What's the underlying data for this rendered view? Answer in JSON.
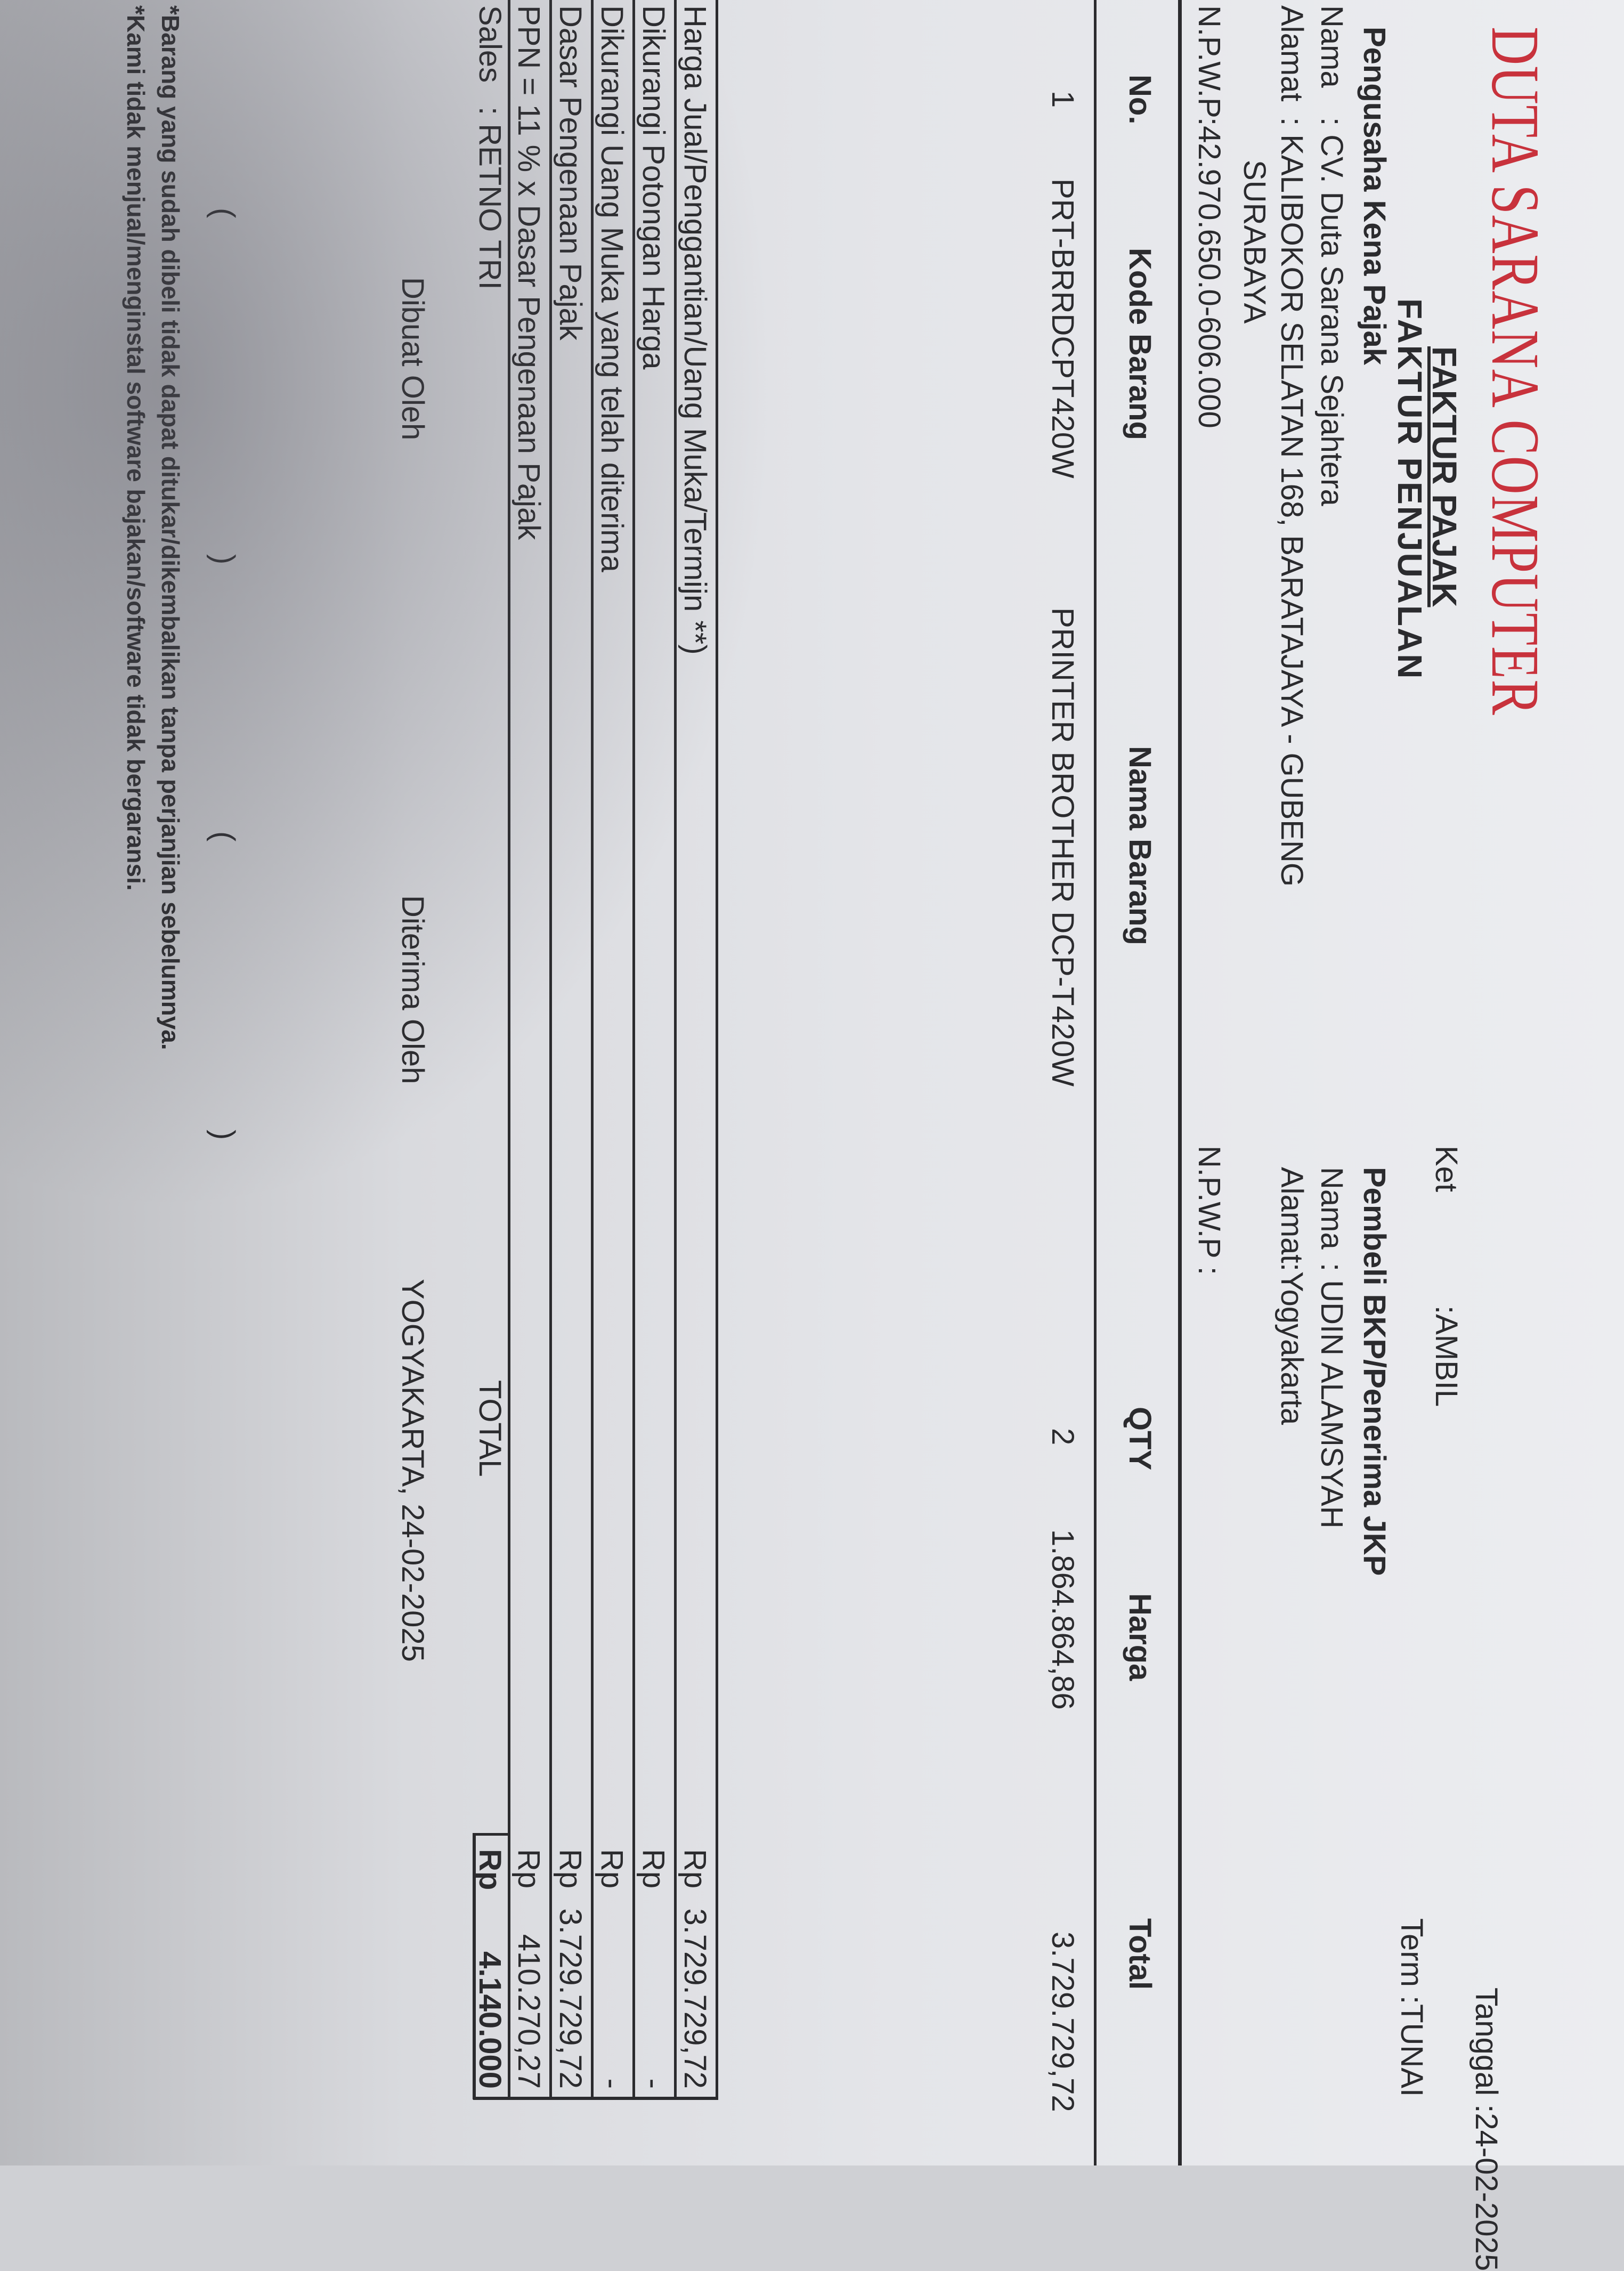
{
  "header": {
    "company": "DUTA SARANA COMPUTER",
    "doc_title": "FAKTUR PAJAK",
    "doc_subtitle": "FAKTUR PENJUALAN",
    "tanggal": "Tanggal :24-02-2025",
    "term": "Term   :TUNAI",
    "ket": "Ket",
    "ket_value": ":AMBIL",
    "accent_color": "#c8323c"
  },
  "seller": {
    "heading": "Pengusaha Kena Pajak",
    "nama_label": "Nama",
    "nama": ": CV. Duta Sarana Sejahtera",
    "alamat_label": "Alamat",
    "alamat": ": KALIBOKOR SELATAN 168, BARATAJAYA - GUBENG",
    "alamat2": "SURABAYA",
    "npwp_label": "N.P.W.P",
    "npwp": ":42.970.650.0-606.000"
  },
  "buyer": {
    "heading": "Pembeli BKP/Penerima JKP",
    "nama_label": "Nama",
    "nama": ": UDIN ALAMSYAH",
    "alamat_label": "Alamat",
    "alamat": ":Yogyakarta",
    "npwp_label": "N.P.W.P :"
  },
  "items_table": {
    "headers": [
      "No.",
      "Kode Barang",
      "Nama Barang",
      "QTY",
      "Harga",
      "Total"
    ],
    "rows": [
      {
        "no": "1",
        "kode": "PRT-BRRDCPT420W",
        "nama": "PRINTER BROTHER DCP-T420W",
        "qty": "2",
        "harga": "1.864.864,86",
        "total": "3.729.729,72"
      }
    ]
  },
  "summary": {
    "rows": [
      {
        "label": "Harga Jual/Penggantian/Uang Muka/Termijn **)",
        "cur": "Rp",
        "value": "3.729.729,72"
      },
      {
        "label": "Dikurangi Potongan Harga",
        "cur": "Rp",
        "value": "-"
      },
      {
        "label": "Dikurangi Uang Muka yang telah diterima",
        "cur": "Rp",
        "value": "-"
      },
      {
        "label": "Dasar Pengenaan Pajak",
        "cur": "Rp",
        "value": "3.729.729,72"
      },
      {
        "label": "PPN = 11 % x Dasar Pengenaan Pajak",
        "cur": "Rp",
        "value": "410.270,27"
      }
    ],
    "sales_label": "Sales",
    "sales": ": RETNO TRI",
    "total_label": "TOTAL",
    "total_cur": "Rp",
    "total": "4.140.000"
  },
  "signatures": {
    "place_date": "YOGYAKARTA, 24-02-2025",
    "made_by": "Dibuat Oleh",
    "received_by": "Diterima Oleh",
    "open": "(",
    "close": ")"
  },
  "notes": [
    "*Barang yang sudah dibeli tidak dapat ditukar/dikembalikan tanpa perjanjian sebelumnya.",
    "*Kami tidak menjual/menginstal software bajakan/software tidak bergaransi."
  ]
}
